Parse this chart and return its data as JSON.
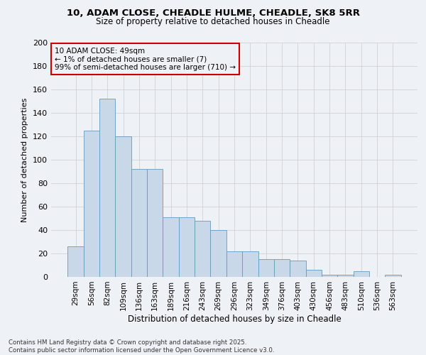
{
  "title_line1": "10, ADAM CLOSE, CHEADLE HULME, CHEADLE, SK8 5RR",
  "title_line2": "Size of property relative to detached houses in Cheadle",
  "xlabel": "Distribution of detached houses by size in Cheadle",
  "ylabel": "Number of detached properties",
  "categories": [
    "29sqm",
    "56sqm",
    "82sqm",
    "109sqm",
    "136sqm",
    "163sqm",
    "189sqm",
    "216sqm",
    "243sqm",
    "269sqm",
    "296sqm",
    "323sqm",
    "349sqm",
    "376sqm",
    "403sqm",
    "430sqm",
    "456sqm",
    "483sqm",
    "510sqm",
    "536sqm",
    "563sqm"
  ],
  "values": [
    26,
    125,
    152,
    120,
    92,
    92,
    51,
    51,
    48,
    40,
    22,
    22,
    15,
    15,
    14,
    6,
    2,
    2,
    5,
    0,
    2
  ],
  "bar_color": "#c8d8e8",
  "bar_edge_color": "#6699bb",
  "annotation_title": "10 ADAM CLOSE: 49sqm",
  "annotation_line1": "← 1% of detached houses are smaller (7)",
  "annotation_line2": "99% of semi-detached houses are larger (710) →",
  "annotation_box_color": "#cc0000",
  "ylim": [
    0,
    200
  ],
  "yticks": [
    0,
    20,
    40,
    60,
    80,
    100,
    120,
    140,
    160,
    180,
    200
  ],
  "grid_color": "#cccccc",
  "background_color": "#eef2f6",
  "footer_line1": "Contains HM Land Registry data © Crown copyright and database right 2025.",
  "footer_line2": "Contains public sector information licensed under the Open Government Licence v3.0."
}
